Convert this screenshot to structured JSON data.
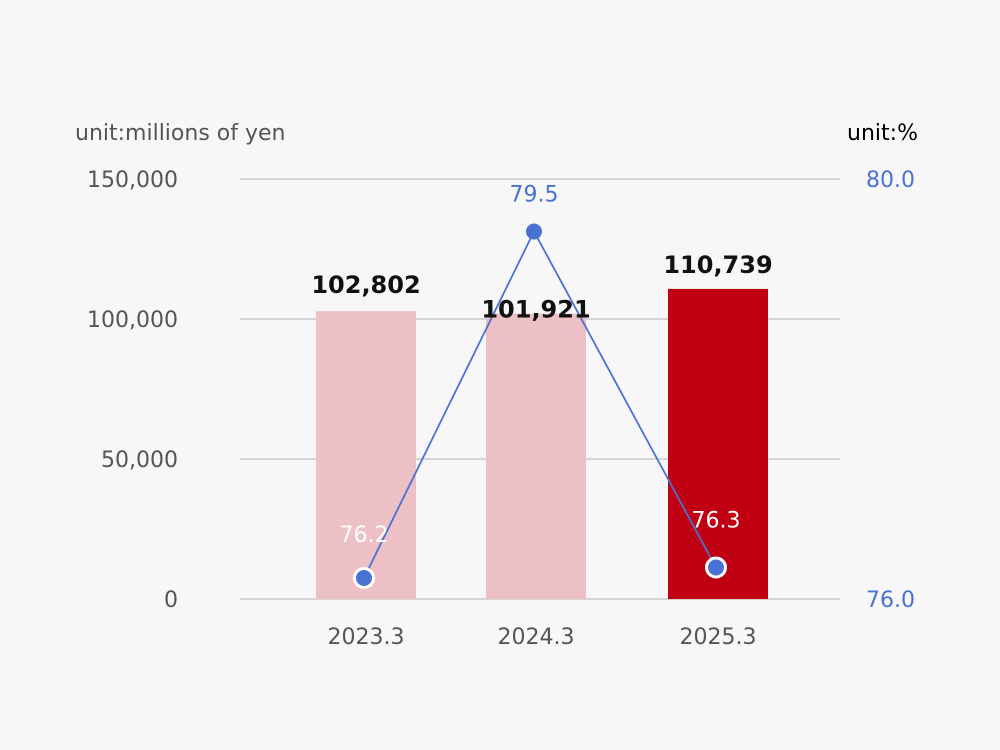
{
  "chart_data": {
    "type": "bar",
    "categories": [
      "2023.3",
      "2024.3",
      "2025.3"
    ],
    "bars": {
      "values": [
        102802,
        101921,
        110739
      ],
      "labels": [
        "102,802",
        "101,921",
        "110,739"
      ],
      "colors": [
        "#ecc0c4",
        "#ecc0c4",
        "#c00012"
      ]
    },
    "line": {
      "values": [
        76.2,
        79.5,
        76.3
      ],
      "labels": [
        "76.2",
        "79.5",
        "76.3"
      ],
      "color": "#4a72d4",
      "label_colors": [
        "#ffffff",
        "#4a72d4",
        "#ffffff"
      ]
    },
    "y_left": {
      "unit": "unit:millions of yen",
      "ylim": [
        0,
        150000
      ],
      "ticks": [
        0,
        50000,
        100000,
        150000
      ],
      "tick_labels": [
        "0",
        "50,000",
        "100,000",
        "150,000"
      ]
    },
    "y_right": {
      "unit": "unit:%",
      "ylim": [
        76.0,
        80.0
      ],
      "ticks": [
        76.0,
        80.0
      ],
      "tick_labels": [
        "76.0",
        "80.0"
      ],
      "color": "#4a72d4"
    },
    "grid": true,
    "grid_color": "#cccccc"
  }
}
